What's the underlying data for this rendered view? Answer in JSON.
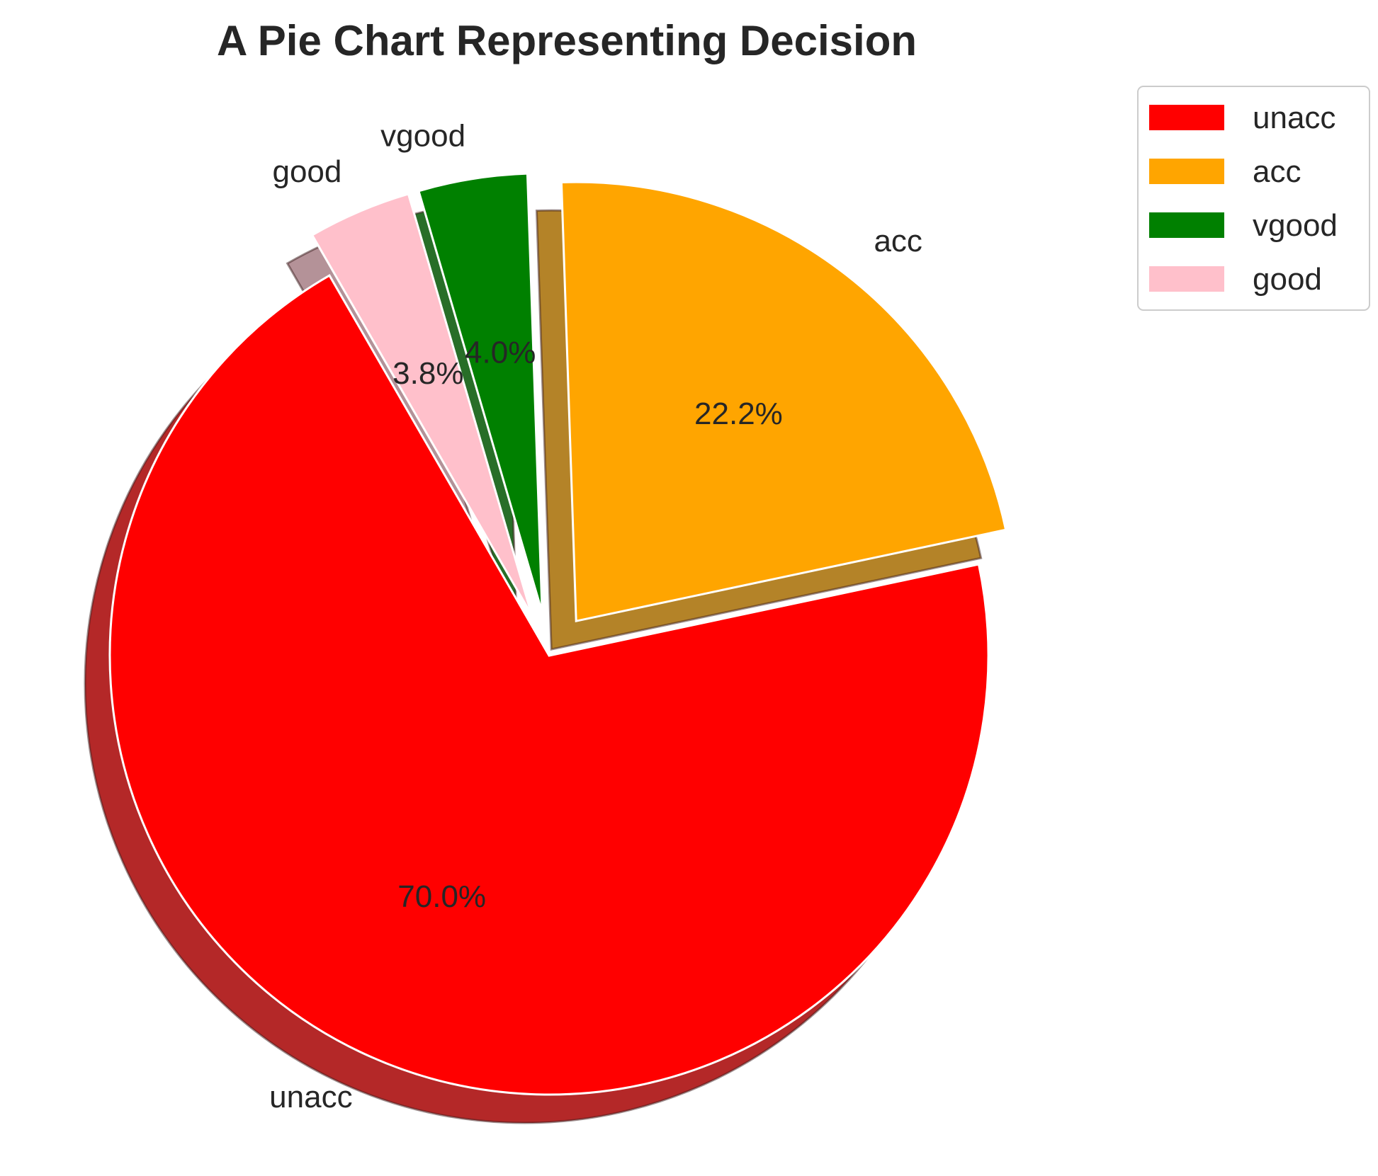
{
  "chart_data": {
    "type": "pie",
    "title": "A Pie Chart Representing Decision",
    "start_angle_deg": 120,
    "direction": "counterclockwise",
    "shadow": true,
    "legend_position": "upper-right-outside",
    "slices": [
      {
        "label": "unacc",
        "value": 70.0,
        "pct_text": "70.0%",
        "color": "#ff0000",
        "explode": 0.0
      },
      {
        "label": "acc",
        "value": 22.2,
        "pct_text": "22.2%",
        "color": "#ffa500",
        "explode": 0.1
      },
      {
        "label": "vgood",
        "value": 4.0,
        "pct_text": "4.0%",
        "color": "#008000",
        "explode": 0.1
      },
      {
        "label": "good",
        "value": 3.8,
        "pct_text": "3.8%",
        "color": "#ffc0cb",
        "explode": 0.1
      }
    ],
    "legend": [
      "unacc",
      "acc",
      "vgood",
      "good"
    ]
  }
}
